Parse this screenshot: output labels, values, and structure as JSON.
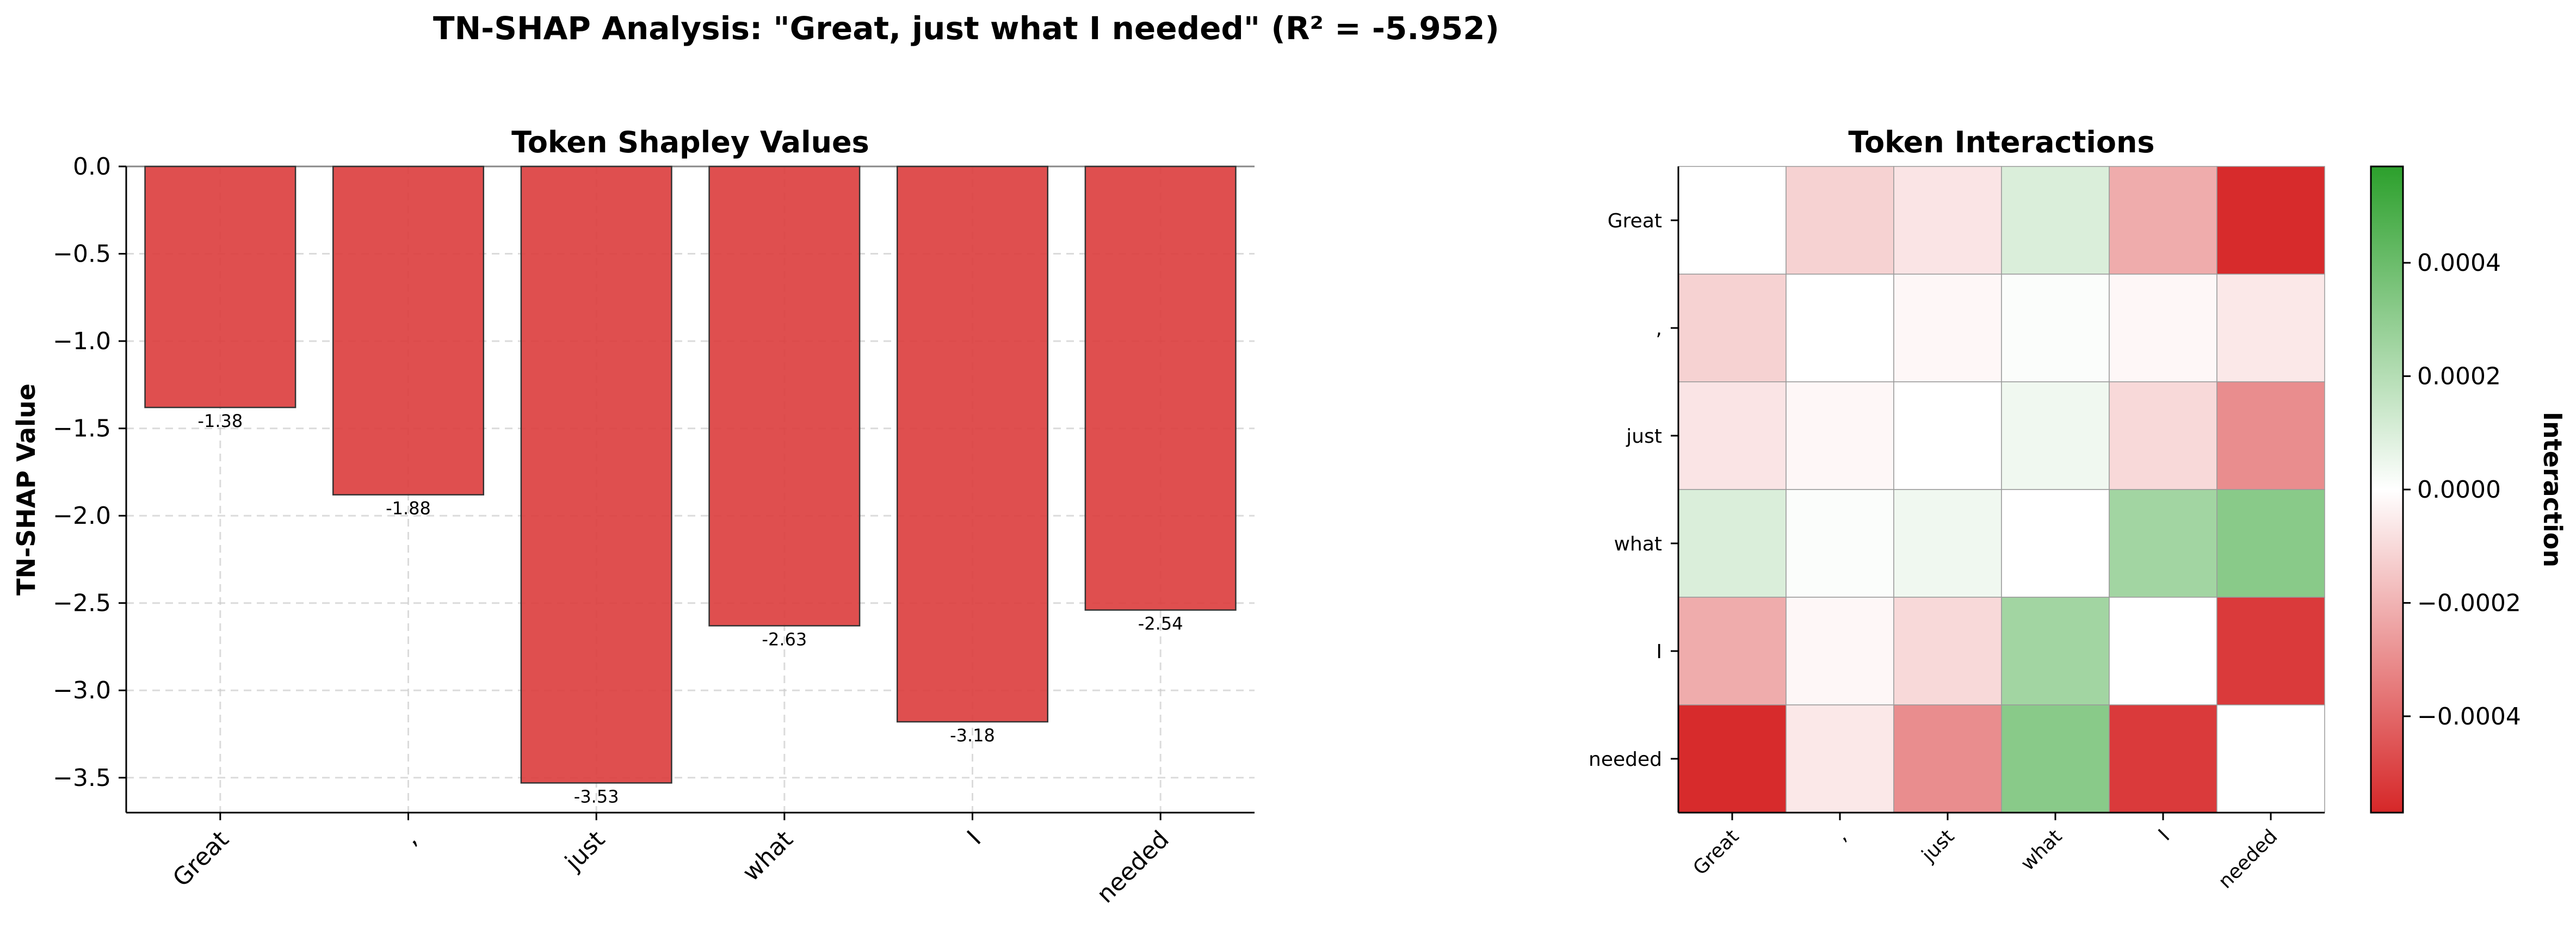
{
  "title": "TN-SHAP Analysis: \"Great, just what I needed\" (R² = -5.952)",
  "chart_data": [
    {
      "type": "bar",
      "title": "Token Shapley Values",
      "xlabel": "",
      "ylabel": "TN-SHAP Value",
      "categories": [
        "Great",
        ",",
        "just",
        "what",
        "I",
        "needed"
      ],
      "values": [
        -1.38,
        -1.88,
        -3.53,
        -2.63,
        -3.18,
        -2.54
      ],
      "data_labels": [
        "-1.38",
        "-1.88",
        "-3.53",
        "-2.63",
        "-3.18",
        "-2.54"
      ],
      "ylim": [
        -3.7,
        0.0
      ],
      "yticks": [
        0.0,
        -0.5,
        -1.0,
        -1.5,
        -2.0,
        -2.5,
        -3.0,
        -3.5
      ],
      "ytick_labels": [
        "0.0",
        "−0.5",
        "−1.0",
        "−1.5",
        "−2.0",
        "−2.5",
        "−3.0",
        "−3.5"
      ],
      "grid": true,
      "bar_color": "#dc3c3c"
    },
    {
      "type": "heatmap",
      "title": "Token Interactions",
      "x_labels": [
        "Great",
        ",",
        "just",
        "what",
        "I",
        "needed"
      ],
      "y_labels": [
        "Great",
        ",",
        "just",
        "what",
        "I",
        "needed"
      ],
      "values": [
        [
          0.0,
          -0.00012,
          -7e-05,
          0.0001,
          -0.00022,
          -0.00056
        ],
        [
          -0.00012,
          0.0,
          -2e-05,
          1e-05,
          -2e-05,
          -6e-05
        ],
        [
          -7e-05,
          -2e-05,
          0.0,
          4e-05,
          -0.0001,
          -0.0003
        ],
        [
          0.0001,
          1e-05,
          4e-05,
          0.0,
          0.00025,
          0.00032
        ],
        [
          -0.00022,
          -2e-05,
          -0.0001,
          0.00025,
          0.0,
          -0.00052
        ],
        [
          -0.00056,
          -6e-05,
          -0.0003,
          0.00032,
          -0.00052,
          0.0
        ]
      ],
      "vlim": [
        -0.00057,
        0.00057
      ],
      "colormap": [
        "#d62728",
        "#ffffff",
        "#2ca02c"
      ],
      "colorbar_label": "Interaction",
      "colorbar_ticks": [
        0.0004,
        0.0002,
        0.0,
        -0.0002,
        -0.0004
      ],
      "colorbar_tick_labels": [
        "0.0004",
        "0.0002",
        "0.0000",
        "−0.0002",
        "−0.0004"
      ]
    }
  ]
}
